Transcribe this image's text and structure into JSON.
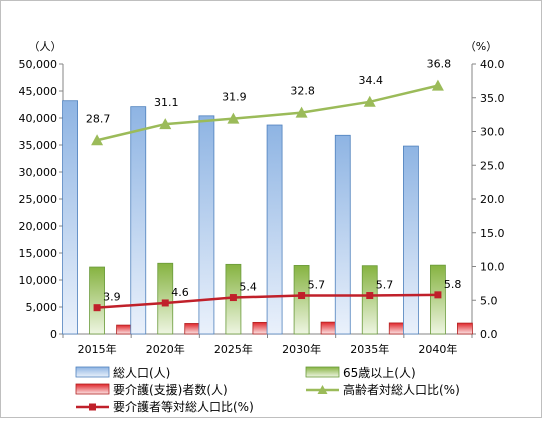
{
  "chart_data": {
    "type": "bar",
    "categories": [
      "2015年",
      "2020年",
      "2025年",
      "2030年",
      "2035年",
      "2040年"
    ],
    "y_left": {
      "label": "（人）",
      "min": 0,
      "max": 50000,
      "ticks": [
        "0",
        "5,000",
        "10,000",
        "15,000",
        "20,000",
        "25,000",
        "30,000",
        "35,000",
        "40,000",
        "45,000",
        "50,000"
      ]
    },
    "y_right": {
      "label": "（%）",
      "min": 0,
      "max": 40,
      "ticks": [
        "0.0",
        "5.0",
        "10.0",
        "15.0",
        "20.0",
        "25.0",
        "30.0",
        "35.0",
        "40.0"
      ]
    },
    "series": [
      {
        "name": "総人口(人)",
        "kind": "bar",
        "axis": "left",
        "color": "#8eb4e3",
        "values": [
          43200,
          42100,
          40400,
          38700,
          36800,
          34800
        ]
      },
      {
        "name": "65歳以上(人)",
        "kind": "bar",
        "axis": "left",
        "color": "#9bbb59",
        "values": [
          12400,
          13100,
          12900,
          12700,
          12650,
          12750
        ]
      },
      {
        "name": "要介護(支援)者数(人)",
        "kind": "bar",
        "axis": "left",
        "color": "#e0262b",
        "values": [
          1650,
          1950,
          2150,
          2200,
          2050,
          2020
        ]
      },
      {
        "name": "高齢者対総人口比(%)",
        "kind": "line",
        "axis": "right",
        "color": "#9bbb59",
        "values": [
          28.7,
          31.1,
          31.9,
          32.8,
          34.4,
          36.8
        ],
        "labels": [
          "28.7",
          "31.1",
          "31.9",
          "32.8",
          "34.4",
          "36.8"
        ]
      },
      {
        "name": "要介護者等対総人口比(%)",
        "kind": "line",
        "axis": "right",
        "color": "#c0202a",
        "values": [
          3.9,
          4.6,
          5.4,
          5.7,
          5.7,
          5.8
        ],
        "labels": [
          "3.9",
          "4.6",
          "5.4",
          "5.7",
          "5.7",
          "5.8"
        ]
      }
    ],
    "grid": false,
    "legend_position": "bottom"
  }
}
